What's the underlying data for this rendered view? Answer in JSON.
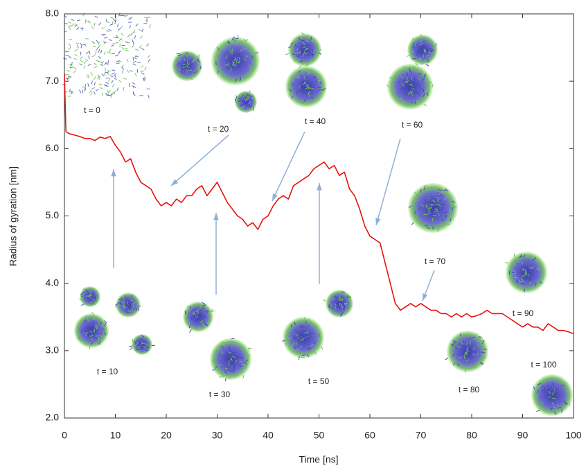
{
  "chart_data": {
    "type": "line",
    "x_label": "Time [ns]",
    "y_label": "Radius of gyration [nm]",
    "x": [
      0,
      0.3,
      1,
      2,
      3,
      4,
      5,
      6,
      7,
      8,
      9,
      10,
      11,
      12,
      13,
      14,
      15,
      16,
      17,
      18,
      19,
      20,
      21,
      22,
      23,
      24,
      25,
      26,
      27,
      28,
      29,
      30,
      31,
      32,
      33,
      34,
      35,
      36,
      37,
      38,
      39,
      40,
      41,
      42,
      43,
      44,
      45,
      46,
      47,
      48,
      49,
      50,
      51,
      52,
      53,
      54,
      55,
      56,
      57,
      58,
      59,
      60,
      61,
      62,
      63,
      64,
      65,
      66,
      67,
      68,
      69,
      70,
      71,
      72,
      73,
      74,
      75,
      76,
      77,
      78,
      79,
      80,
      81,
      82,
      83,
      84,
      85,
      86,
      87,
      88,
      89,
      90,
      91,
      92,
      93,
      94,
      95,
      96,
      97,
      98,
      99,
      100
    ],
    "series": [
      {
        "color": "#e8120c",
        "values": [
          7.1,
          6.25,
          6.22,
          6.2,
          6.18,
          6.15,
          6.15,
          6.12,
          6.17,
          6.15,
          6.18,
          6.05,
          5.95,
          5.8,
          5.85,
          5.65,
          5.5,
          5.45,
          5.4,
          5.25,
          5.15,
          5.2,
          5.15,
          5.25,
          5.2,
          5.3,
          5.3,
          5.4,
          5.45,
          5.3,
          5.4,
          5.5,
          5.35,
          5.2,
          5.1,
          5.0,
          4.95,
          4.85,
          4.9,
          4.8,
          4.95,
          5.0,
          5.15,
          5.25,
          5.3,
          5.25,
          5.45,
          5.5,
          5.55,
          5.6,
          5.7,
          5.75,
          5.8,
          5.7,
          5.75,
          5.6,
          5.65,
          5.4,
          5.3,
          5.1,
          4.85,
          4.7,
          4.65,
          4.6,
          4.3,
          4.0,
          3.7,
          3.6,
          3.65,
          3.7,
          3.65,
          3.7,
          3.65,
          3.6,
          3.6,
          3.55,
          3.55,
          3.5,
          3.55,
          3.5,
          3.55,
          3.5,
          3.52,
          3.55,
          3.6,
          3.55,
          3.55,
          3.55,
          3.5,
          3.45,
          3.4,
          3.35,
          3.4,
          3.35,
          3.35,
          3.3,
          3.4,
          3.35,
          3.3,
          3.3,
          3.28,
          3.25
        ]
      }
    ],
    "xlim": [
      0,
      100
    ],
    "xticks": [
      0,
      10,
      20,
      30,
      40,
      50,
      60,
      70,
      80,
      90,
      100
    ],
    "ylim": [
      2,
      8
    ],
    "yticks": [
      {
        "value": 2,
        "label": "2.0"
      },
      {
        "value": 3,
        "label": "3.0"
      },
      {
        "value": 4,
        "label": "4.0"
      },
      {
        "value": 5,
        "label": "5.0"
      },
      {
        "value": 6,
        "label": "6.0"
      },
      {
        "value": 7,
        "label": "7.0"
      },
      {
        "value": 8,
        "label": "8.0"
      }
    ],
    "annotations": [
      "t = 0",
      "t = 20",
      "t = 40",
      "t = 60",
      "t = 70",
      "t = 90",
      "t = 100",
      "t = 10",
      "t = 30",
      "t = 50",
      "t = 80"
    ]
  }
}
